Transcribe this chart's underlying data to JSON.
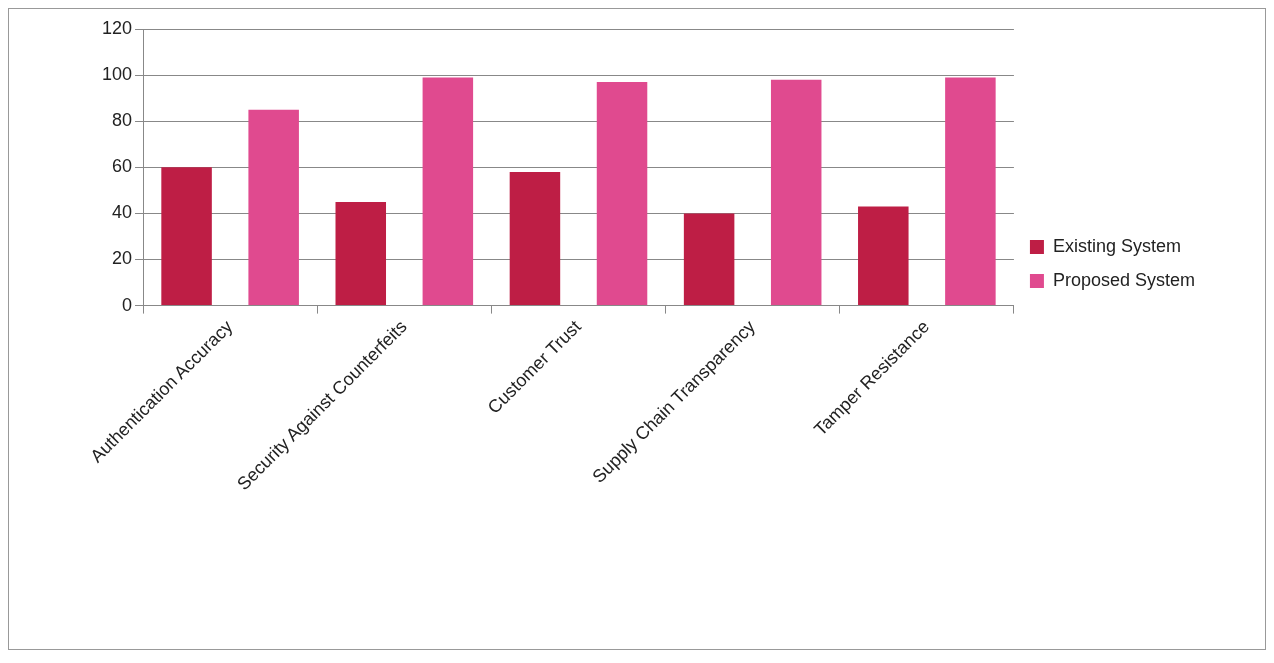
{
  "chart_data": {
    "type": "bar",
    "categories": [
      "Authentication Accuracy",
      "Security Against Counterfeits",
      "Customer Trust",
      "Supply Chain Transparency",
      "Tamper Resistance"
    ],
    "series": [
      {
        "name": "Existing System",
        "color": "#be1e45",
        "values": [
          60,
          45,
          58,
          40,
          43
        ]
      },
      {
        "name": "Proposed System",
        "color": "#e04a8f",
        "values": [
          85,
          99,
          97,
          98,
          99
        ]
      }
    ],
    "ylim": [
      0,
      120
    ],
    "yticks": [
      0,
      20,
      40,
      60,
      80,
      100,
      120
    ],
    "grid": "y",
    "legend": "right"
  }
}
